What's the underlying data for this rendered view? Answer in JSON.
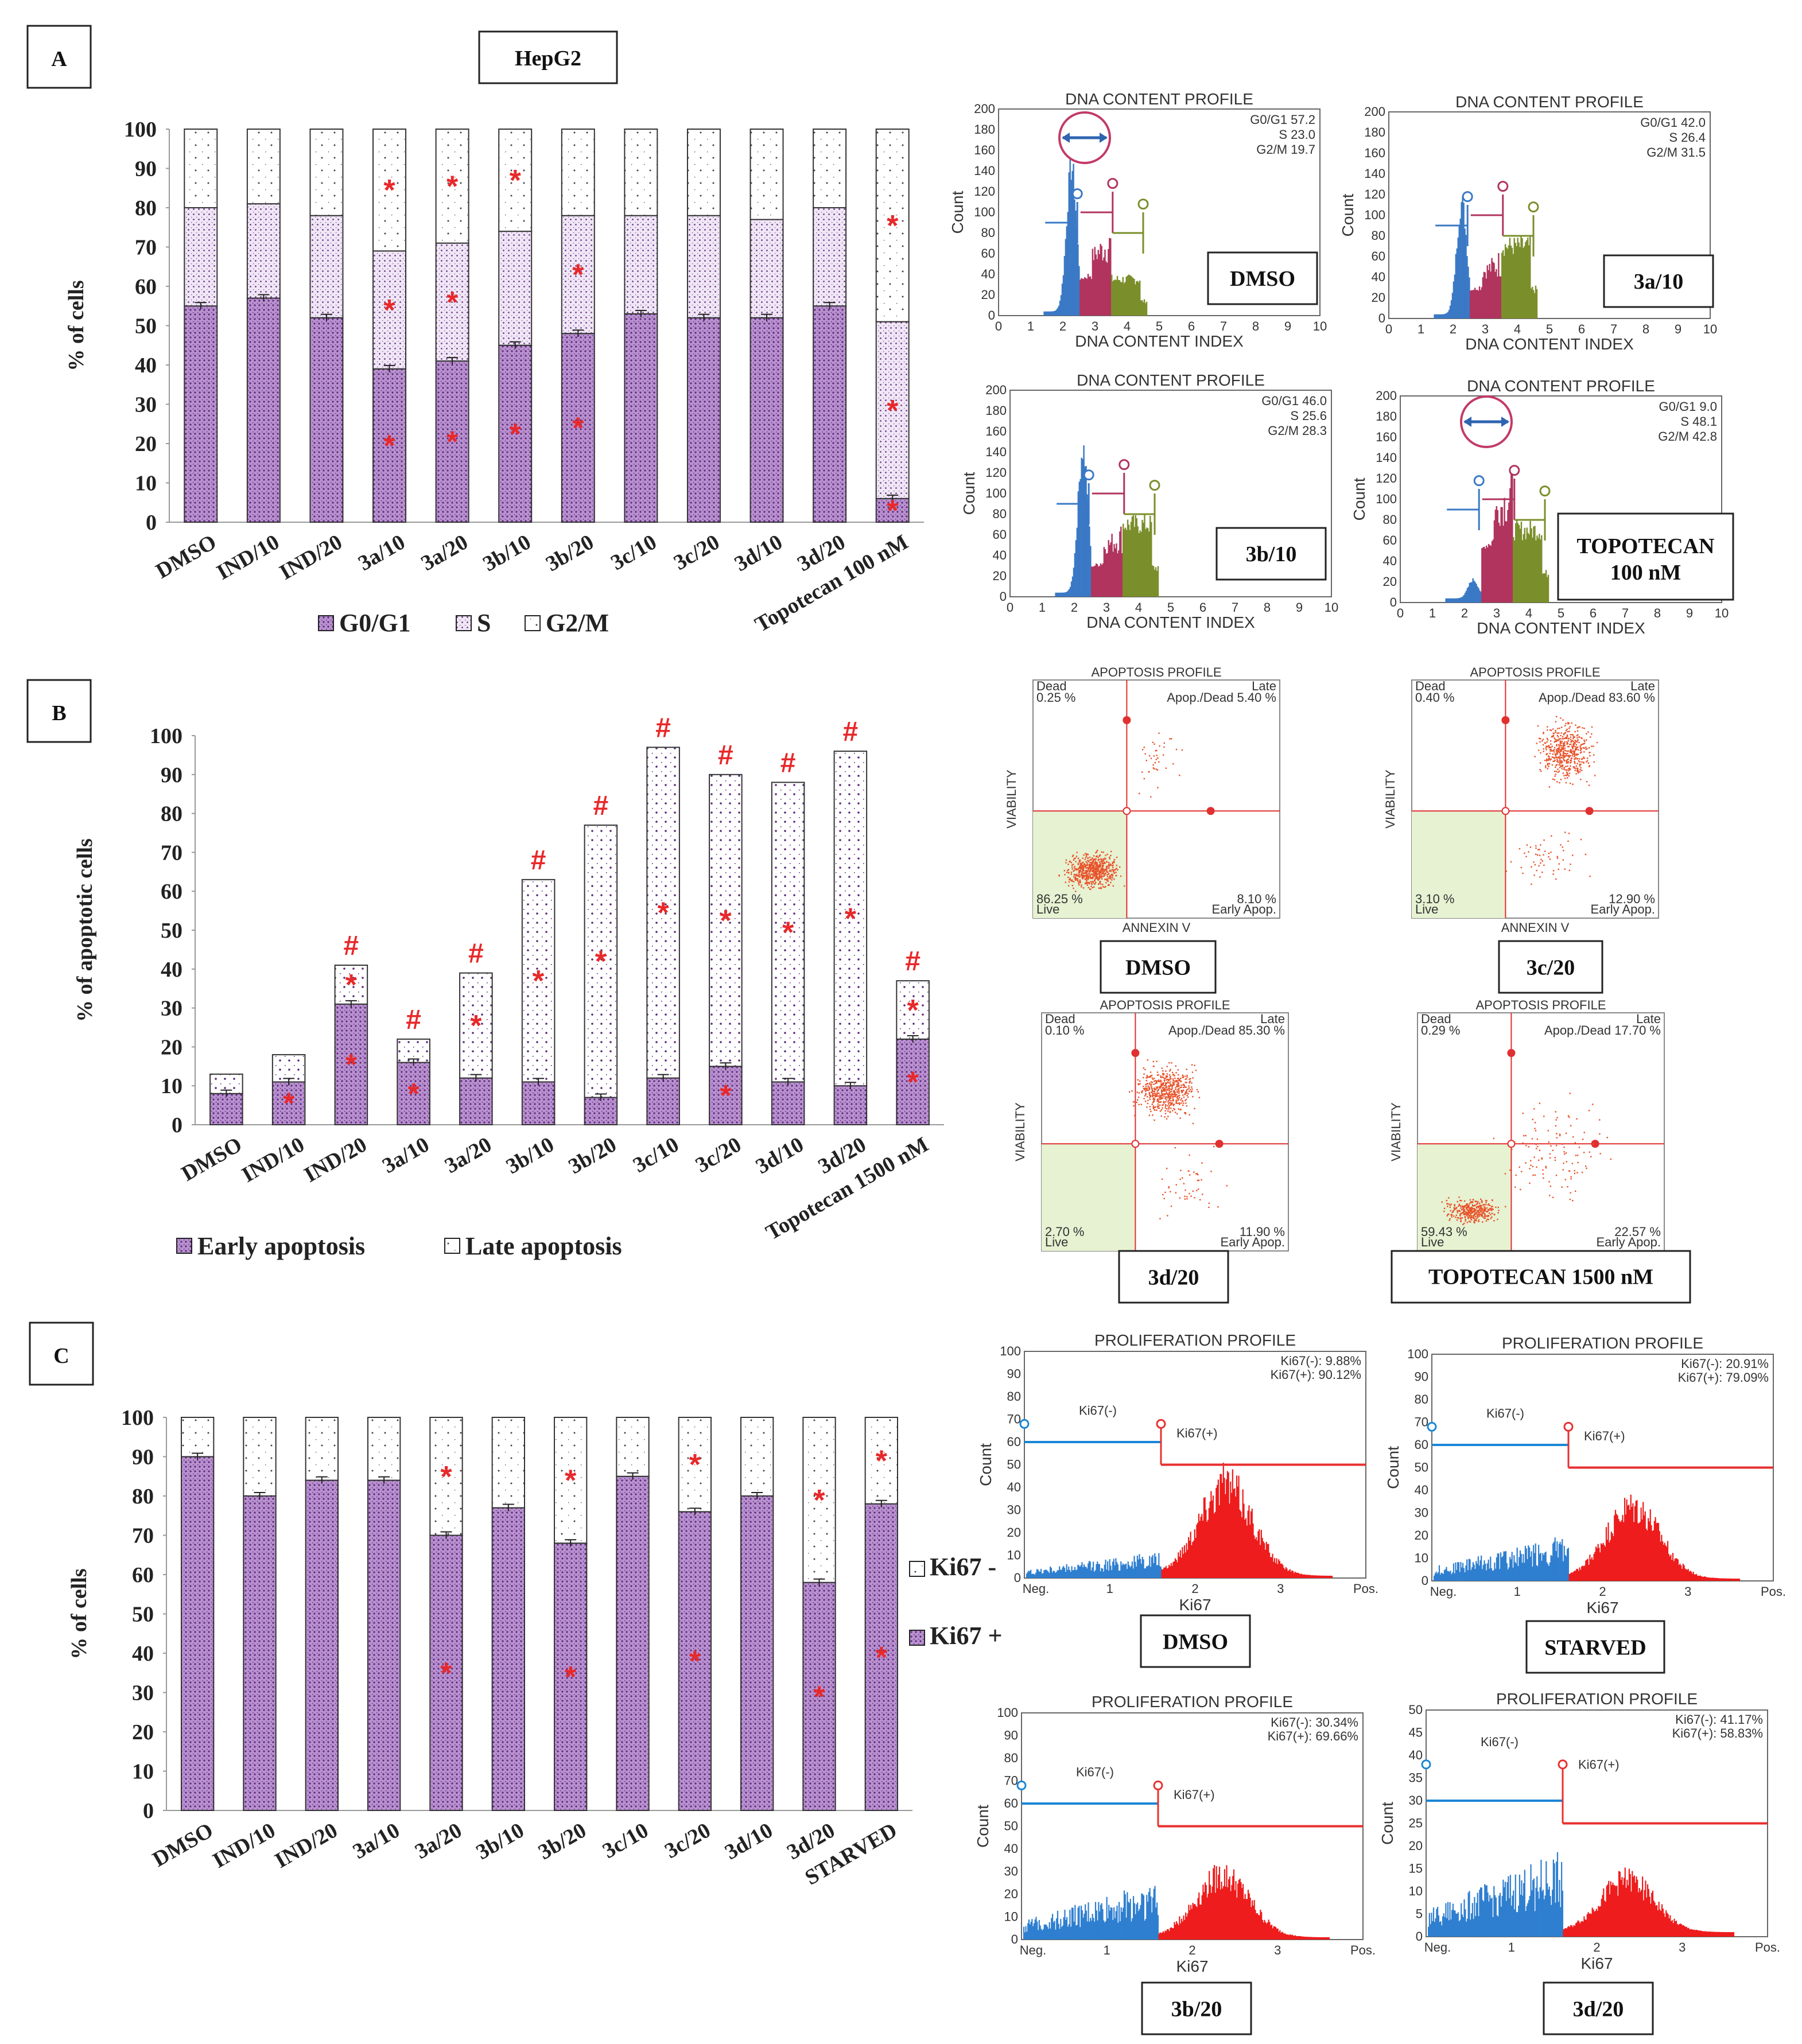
{
  "panels": {
    "A": {
      "letter": "A",
      "title": "HepG2",
      "ylabel": "% of cells",
      "legend": [
        "G0/G1",
        "S",
        "G2/M"
      ],
      "chart_data": {
        "type": "bar",
        "stacked": true,
        "ylabel": "% of cells",
        "ylim": [
          0,
          100
        ],
        "yticks": [
          0,
          10,
          20,
          30,
          40,
          50,
          60,
          70,
          80,
          90,
          100
        ],
        "categories": [
          "DMSO",
          "IND/10",
          "IND/20",
          "3a/10",
          "3a/20",
          "3b/10",
          "3b/20",
          "3c/10",
          "3c/20",
          "3d/10",
          "3d/20",
          "Topotecan 100 nM"
        ],
        "series": [
          {
            "name": "G0/G1",
            "color": "#b48acb",
            "values": [
              55,
              57,
              52,
              39,
              41,
              45,
              48,
              53,
              52,
              52,
              55,
              6
            ]
          },
          {
            "name": "S",
            "color": "#d9c5e6",
            "values": [
              25,
              24,
              26,
              30,
              30,
              29,
              30,
              25,
              26,
              25,
              25,
              45
            ]
          },
          {
            "name": "G2/M",
            "color": "#ffffff",
            "values": [
              20,
              19,
              22,
              31,
              29,
              26,
              22,
              22,
              22,
              23,
              20,
              49
            ]
          }
        ],
        "stars": [
          [
            3,
            1
          ],
          [
            3,
            2
          ],
          [
            3,
            3
          ],
          [
            4,
            1
          ],
          [
            4,
            2
          ],
          [
            4,
            3
          ],
          [
            5,
            1
          ],
          [
            5,
            3
          ],
          [
            6,
            1
          ],
          [
            6,
            2
          ],
          [
            11,
            1
          ],
          [
            11,
            2
          ],
          [
            11,
            3
          ]
        ]
      },
      "flow_title": "DNA CONTENT PROFILE",
      "flow_xlabel": "DNA CONTENT INDEX",
      "flow_ylabel": "Count",
      "flow_plots": [
        {
          "label": "DMSO",
          "stats": [
            "G0/G1 57.2",
            "S 23.0",
            "G2/M 19.7"
          ]
        },
        {
          "label": "3a/10",
          "stats": [
            "G0/G1 42.0",
            "S 26.4",
            "G2/M 31.5"
          ]
        },
        {
          "label": "3b/10",
          "stats": [
            "G0/G1 46.0",
            "S 25.6",
            "G2/M 28.3"
          ]
        },
        {
          "label": "TOPOTECAN\n100 nM",
          "label1": "TOPOTECAN",
          "label2": "100 nM",
          "stats": [
            "G0/G1 9.0",
            "S 48.1",
            "G2/M 42.8"
          ]
        }
      ]
    },
    "B": {
      "letter": "B",
      "ylabel": "% of apoptotic cells",
      "legend": [
        "Early apoptosis",
        "Late apoptosis"
      ],
      "chart_data": {
        "type": "bar",
        "stacked": true,
        "ylabel": "% of apoptotic cells",
        "ylim": [
          0,
          100
        ],
        "yticks": [
          0,
          10,
          20,
          30,
          40,
          50,
          60,
          70,
          80,
          90,
          100
        ],
        "categories": [
          "DMSO",
          "IND/10",
          "IND/20",
          "3a/10",
          "3a/20",
          "3b/10",
          "3b/20",
          "3c/10",
          "3c/20",
          "3d/10",
          "3d/20",
          "Topotecan 1500 nM"
        ],
        "series": [
          {
            "name": "Early apoptosis",
            "color": "#b48acb",
            "values": [
              8,
              11,
              31,
              16,
              12,
              11,
              7,
              12,
              15,
              11,
              10,
              22
            ]
          },
          {
            "name": "Late apoptosis",
            "color": "#ffffff",
            "values": [
              5,
              7,
              10,
              6,
              27,
              52,
              70,
              85,
              75,
              77,
              86,
              15
            ]
          }
        ],
        "hash": [
          false,
          false,
          true,
          true,
          true,
          true,
          true,
          true,
          true,
          true,
          true,
          true
        ],
        "stars": [
          [
            1,
            1
          ],
          [
            2,
            1
          ],
          [
            2,
            2
          ],
          [
            3,
            1
          ],
          [
            4,
            2
          ],
          [
            5,
            2
          ],
          [
            6,
            2
          ],
          [
            7,
            2
          ],
          [
            8,
            1
          ],
          [
            8,
            2
          ],
          [
            9,
            2
          ],
          [
            10,
            2
          ],
          [
            11,
            1
          ],
          [
            11,
            2
          ]
        ]
      },
      "flow_title": "APOPTOSIS PROFILE",
      "flow_xlabel": "ANNEXIN V",
      "flow_ylabel": "VIABILITY",
      "flow_plots": [
        {
          "label": "DMSO",
          "dead": "Dead 0.25 %",
          "late": "Late Apop./Dead 5.40 %",
          "live": "86.25 % Live",
          "early": "8.10 % Early Apop."
        },
        {
          "label": "3c/20",
          "dead": "Dead 0.40 %",
          "late": "Late Apop./Dead 83.60 %",
          "live": "3.10 % Live",
          "early": "12.90 % Early Apop."
        },
        {
          "label": "3d/20",
          "dead": "Dead 0.10 %",
          "late": "Late Apop./Dead 85.30 %",
          "live": "2.70 % Live",
          "early": "11.90 % Early Apop."
        },
        {
          "label": "TOPOTECAN 1500 nM",
          "dead": "Dead 0.29 %",
          "late": "Late Apop./Dead 17.70 %",
          "live": "59.43 % Live",
          "early": "22.57 % Early Apop."
        }
      ]
    },
    "C": {
      "letter": "C",
      "ylabel": "% of cells",
      "legend": [
        "Ki67 -",
        "Ki67 +"
      ],
      "chart_data": {
        "type": "bar",
        "stacked": true,
        "ylabel": "% of cells",
        "ylim": [
          0,
          100
        ],
        "yticks": [
          0,
          10,
          20,
          30,
          40,
          50,
          60,
          70,
          80,
          90,
          100
        ],
        "categories": [
          "DMSO",
          "IND/10",
          "IND/20",
          "3a/10",
          "3a/20",
          "3b/10",
          "3b/20",
          "3c/10",
          "3c/20",
          "3d/10",
          "3d/20",
          "STARVED"
        ],
        "series": [
          {
            "name": "Ki67 +",
            "color": "#b48acb",
            "values": [
              90,
              80,
              84,
              84,
              70,
              77,
              68,
              85,
              76,
              80,
              58,
              78
            ]
          },
          {
            "name": "Ki67 -",
            "color": "#ffffff",
            "values": [
              10,
              20,
              16,
              16,
              30,
              23,
              32,
              15,
              24,
              20,
              42,
              22
            ]
          }
        ],
        "stars": [
          [
            4,
            1
          ],
          [
            4,
            2
          ],
          [
            6,
            1
          ],
          [
            6,
            2
          ],
          [
            8,
            1
          ],
          [
            8,
            2
          ],
          [
            10,
            1
          ],
          [
            10,
            2
          ],
          [
            11,
            1
          ],
          [
            11,
            2
          ]
        ]
      },
      "flow_title": "PROLIFERATION PROFILE",
      "flow_xlabel": "Ki67",
      "flow_ylabel": "Count",
      "flow_plots": [
        {
          "label": "DMSO",
          "neg": "Ki67(-): 9.88%",
          "pos": "Ki67(+): 90.12%"
        },
        {
          "label": "STARVED",
          "neg": "Ki67(-): 20.91%",
          "pos": "Ki67(+): 79.09%"
        },
        {
          "label": "3b/20",
          "neg": "Ki67(-): 30.34%",
          "pos": "Ki67(+): 69.66%"
        },
        {
          "label": "3d/20",
          "neg": "Ki67(-): 41.17%",
          "pos": "Ki67(+): 58.83%"
        }
      ]
    }
  }
}
